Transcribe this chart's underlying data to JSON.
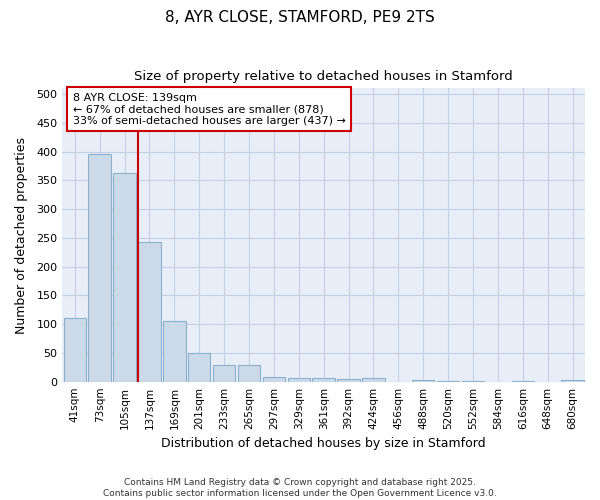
{
  "title1": "8, AYR CLOSE, STAMFORD, PE9 2TS",
  "title2": "Size of property relative to detached houses in Stamford",
  "xlabel": "Distribution of detached houses by size in Stamford",
  "ylabel": "Number of detached properties",
  "footer1": "Contains HM Land Registry data © Crown copyright and database right 2025.",
  "footer2": "Contains public sector information licensed under the Open Government Licence v3.0.",
  "categories": [
    "41sqm",
    "73sqm",
    "105sqm",
    "137sqm",
    "169sqm",
    "201sqm",
    "233sqm",
    "265sqm",
    "297sqm",
    "329sqm",
    "361sqm",
    "392sqm",
    "424sqm",
    "456sqm",
    "488sqm",
    "520sqm",
    "552sqm",
    "584sqm",
    "616sqm",
    "648sqm",
    "680sqm"
  ],
  "values": [
    111,
    396,
    362,
    242,
    105,
    50,
    29,
    29,
    8,
    7,
    6,
    5,
    7,
    0,
    3,
    1,
    1,
    0,
    2,
    0,
    3
  ],
  "bar_color": "#ccd9e8",
  "bar_edge_color": "#8ab0d0",
  "redline_index": 3,
  "redline_label": "8 AYR CLOSE: 139sqm",
  "annotation_line1": "← 67% of detached houses are smaller (878)",
  "annotation_line2": "33% of semi-detached houses are larger (437) →",
  "annotation_box_facecolor": "#ffffff",
  "annotation_box_edgecolor": "#cc0000",
  "redline_color": "#cc0000",
  "grid_color": "#c5d0e8",
  "plot_bg_color": "#e8eef8",
  "fig_bg_color": "#ffffff",
  "ylim": [
    0,
    510
  ],
  "yticks": [
    0,
    50,
    100,
    150,
    200,
    250,
    300,
    350,
    400,
    450,
    500
  ]
}
